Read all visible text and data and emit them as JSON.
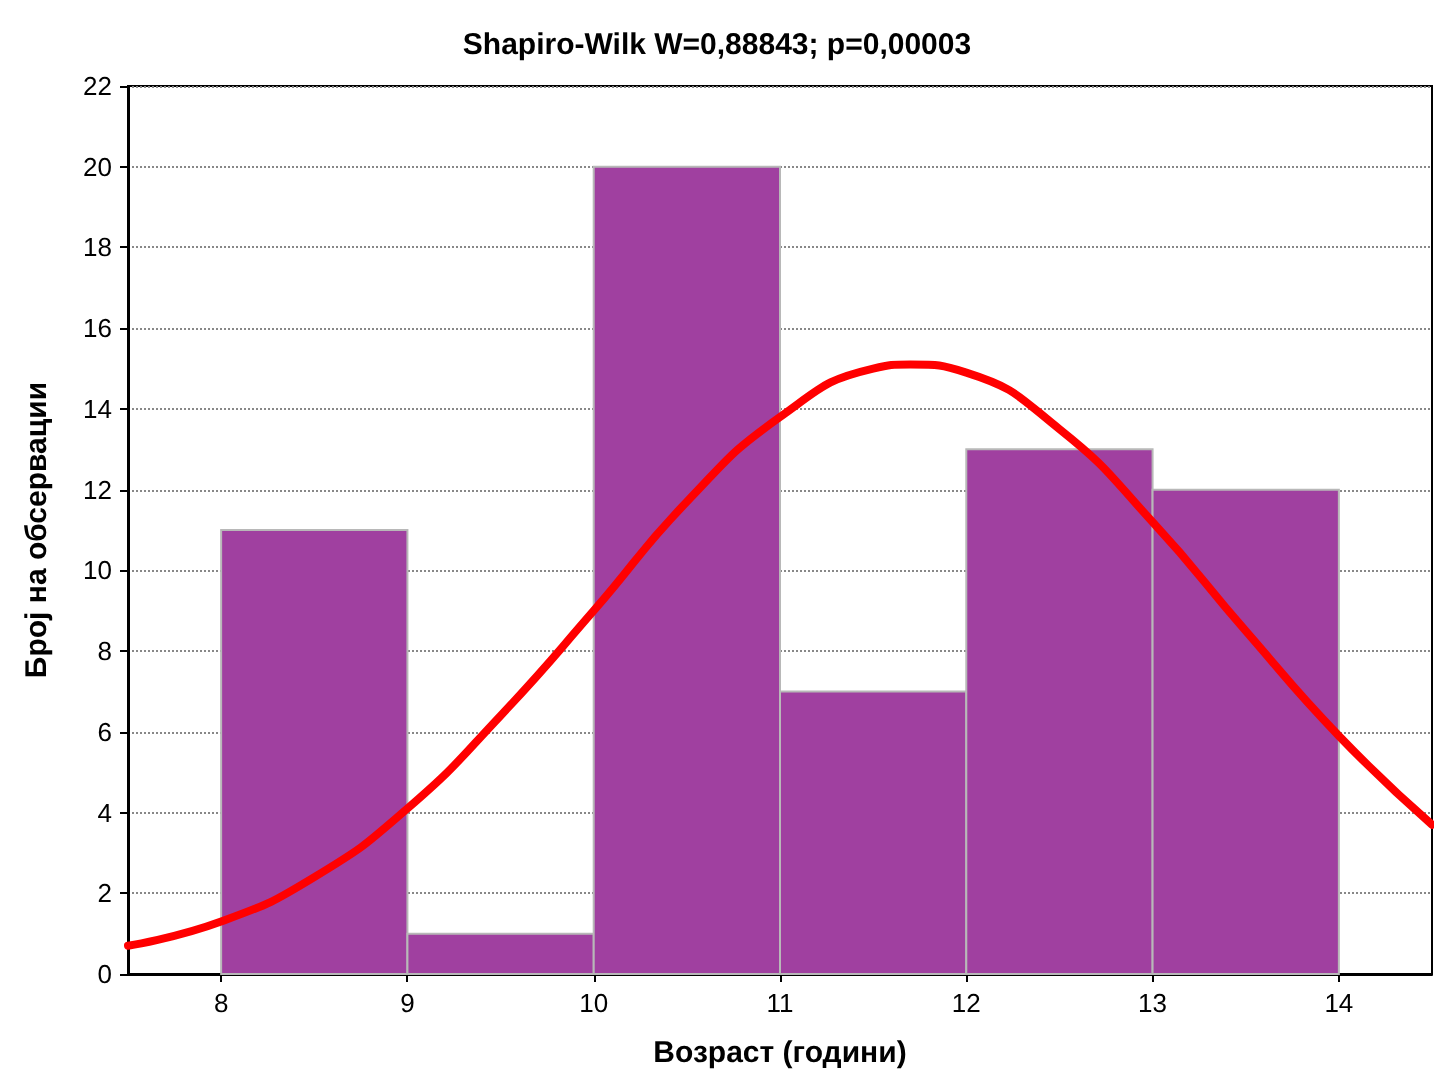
{
  "chart_data": {
    "type": "histogram",
    "title": "Shapiro-Wilk W=0,88843; p=0,00003",
    "xlabel": "Возраст (години)",
    "ylabel": "Број на обсервации",
    "bins": [
      8,
      9,
      10,
      11,
      12,
      13,
      14
    ],
    "values": [
      11,
      1,
      20,
      7,
      13,
      12
    ],
    "color": "#a040a0",
    "series": [
      {
        "type": "line",
        "color": "#ff0000",
        "x": [
          7.5,
          8,
          8.5,
          9,
          9.5,
          10,
          10.5,
          11,
          11.5,
          11.7,
          12,
          12.5,
          13,
          13.5,
          14,
          14.5
        ],
        "values": [
          0.7,
          1.3,
          2.4,
          4.1,
          6.4,
          9.0,
          11.7,
          13.8,
          15.0,
          15.1,
          14.9,
          13.5,
          11.2,
          8.5,
          5.9,
          3.7
        ]
      }
    ],
    "xlim": [
      7.5,
      14.5
    ],
    "xticks": [
      8,
      9,
      10,
      11,
      12,
      13,
      14
    ],
    "ylim": [
      0,
      22
    ],
    "yticks": [
      0,
      2,
      4,
      6,
      8,
      10,
      12,
      14,
      16,
      18,
      20,
      22
    ],
    "grid": "y"
  }
}
